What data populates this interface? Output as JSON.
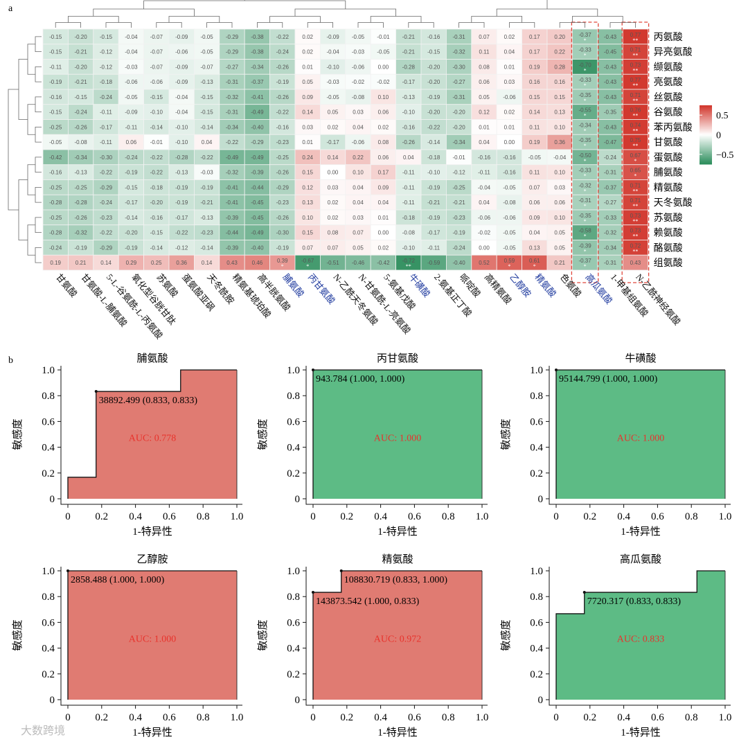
{
  "panel_labels": {
    "a": "a",
    "b": "b"
  },
  "chart_data": [
    {
      "type": "heatmap",
      "title": "",
      "columns": [
        "甘氨酸",
        "甘氨酸-L-脯氨酸",
        "5-L-谷氨酰-L-丙氨酸",
        "氧化型谷胱甘肽",
        "苏氨酸",
        "蛋氨酸亚砜",
        "天冬酰胺",
        "精氨基琥珀酸",
        "高半胱氨酸",
        "脯氨酸",
        "丙甘氨酸",
        "N-乙酰天冬氨酸",
        "N-甘氨酰-L-亮氨酸",
        "5-氨基戊酸",
        "牛磺酸",
        "2-氨基正丁酸",
        "哌啶酸",
        "高精氨酸",
        "乙醇胺",
        "精氨酸",
        "色氨酸",
        "高瓜氨酸",
        "1-甲基组氨酸",
        "N-乙酰神经氨酸"
      ],
      "highlighted_columns": [
        "脯氨酸",
        "丙甘氨酸",
        "牛磺酸",
        "乙醇胺",
        "精氨酸",
        "高瓜氨酸"
      ],
      "boxed_columns": [
        "高瓜氨酸",
        "N-乙酰神经氨酸"
      ],
      "rows": [
        "丙氨酸",
        "异亮氨酸",
        "缬氨酸",
        "亮氨酸",
        "丝氨酸",
        "谷氨酸",
        "苯丙氨酸",
        "甘氨酸",
        "蛋氨酸",
        "脯氨酸",
        "精氨酸",
        "天冬氨酸",
        "苏氨酸",
        "赖氨酸",
        "酪氨酸",
        "组氨酸"
      ],
      "values": [
        [
          -0.15,
          -0.2,
          -0.15,
          -0.04,
          -0.07,
          -0.09,
          -0.05,
          -0.29,
          -0.38,
          -0.22,
          0.02,
          -0.09,
          -0.05,
          -0.01,
          -0.21,
          -0.16,
          -0.31,
          0.07,
          0.02,
          0.17,
          0.2,
          -0.37,
          -0.43,
          0.77
        ],
        [
          -0.15,
          -0.21,
          -0.12,
          -0.04,
          -0.07,
          -0.06,
          -0.05,
          -0.29,
          -0.38,
          -0.24,
          0.02,
          -0.04,
          -0.03,
          -0.05,
          -0.21,
          -0.15,
          -0.32,
          0.11,
          0.04,
          0.17,
          0.22,
          -0.33,
          -0.45,
          0.71
        ],
        [
          -0.11,
          -0.2,
          -0.12,
          -0.03,
          -0.07,
          -0.09,
          -0.07,
          -0.27,
          -0.34,
          -0.26,
          0.01,
          -0.1,
          -0.06,
          0.0,
          -0.28,
          -0.2,
          -0.3,
          0.08,
          0.01,
          0.19,
          0.28,
          -0.7,
          -0.43,
          0.73
        ],
        [
          -0.19,
          -0.21,
          -0.18,
          -0.06,
          -0.06,
          -0.09,
          -0.13,
          -0.31,
          -0.37,
          -0.19,
          0.05,
          -0.03,
          -0.02,
          -0.02,
          -0.17,
          -0.2,
          -0.27,
          0.06,
          0.03,
          0.16,
          0.16,
          -0.33,
          -0.43,
          0.77
        ],
        [
          -0.16,
          -0.15,
          -0.24,
          -0.05,
          -0.15,
          -0.04,
          -0.15,
          -0.32,
          -0.41,
          -0.26,
          0.09,
          -0.05,
          -0.08,
          0.1,
          -0.13,
          -0.19,
          -0.31,
          0.05,
          -0.06,
          0.15,
          0.15,
          -0.35,
          -0.43,
          0.71
        ],
        [
          -0.15,
          -0.24,
          -0.11,
          -0.09,
          -0.1,
          -0.04,
          -0.15,
          -0.31,
          -0.49,
          -0.22,
          0.14,
          0.05,
          0.03,
          0.06,
          -0.1,
          -0.2,
          -0.2,
          0.12,
          0.02,
          0.14,
          0.13,
          -0.55,
          -0.35,
          0.76
        ],
        [
          -0.25,
          -0.26,
          -0.17,
          -0.11,
          -0.14,
          -0.1,
          -0.14,
          -0.34,
          -0.4,
          -0.16,
          0.03,
          0.02,
          0.04,
          0.02,
          -0.16,
          -0.22,
          -0.2,
          0.01,
          0.01,
          0.11,
          0.1,
          -0.34,
          -0.43,
          0.74
        ],
        [
          -0.05,
          -0.08,
          -0.11,
          0.06,
          -0.01,
          -0.1,
          0.04,
          -0.22,
          -0.29,
          -0.23,
          0.01,
          -0.17,
          -0.06,
          0.08,
          -0.26,
          -0.14,
          -0.34,
          0.04,
          0.0,
          0.19,
          0.36,
          -0.35,
          -0.47,
          0.75
        ],
        [
          -0.42,
          -0.34,
          -0.3,
          -0.24,
          -0.22,
          -0.28,
          -0.22,
          -0.49,
          -0.49,
          -0.25,
          0.24,
          0.14,
          0.22,
          0.06,
          0.04,
          -0.18,
          -0.01,
          -0.16,
          -0.16,
          -0.05,
          -0.04,
          -0.5,
          -0.24,
          0.67
        ],
        [
          -0.16,
          -0.13,
          -0.22,
          -0.19,
          -0.22,
          -0.13,
          -0.03,
          -0.32,
          -0.39,
          -0.26,
          0.15,
          0.0,
          0.1,
          0.17,
          -0.11,
          -0.1,
          -0.12,
          -0.11,
          -0.16,
          0.11,
          0.1,
          -0.33,
          -0.31,
          0.65
        ],
        [
          -0.25,
          -0.25,
          -0.29,
          -0.15,
          -0.18,
          -0.19,
          -0.19,
          -0.41,
          -0.44,
          -0.29,
          0.12,
          0.03,
          0.04,
          0.09,
          -0.11,
          -0.19,
          -0.25,
          -0.04,
          -0.05,
          0.07,
          0.03,
          -0.32,
          -0.37,
          0.71
        ],
        [
          -0.28,
          -0.28,
          -0.24,
          -0.17,
          -0.2,
          -0.19,
          -0.21,
          -0.41,
          -0.45,
          -0.23,
          0.13,
          0.02,
          0.04,
          0.04,
          -0.11,
          -0.21,
          -0.21,
          0.04,
          -0.08,
          0.06,
          0.06,
          -0.31,
          -0.27,
          0.71
        ],
        [
          -0.25,
          -0.26,
          -0.23,
          -0.14,
          -0.16,
          -0.17,
          -0.13,
          -0.39,
          -0.45,
          -0.26,
          0.1,
          0.02,
          0.03,
          0.01,
          -0.18,
          -0.19,
          -0.23,
          -0.06,
          -0.06,
          0.09,
          0.1,
          -0.35,
          -0.33,
          0.73
        ],
        [
          -0.28,
          -0.32,
          -0.22,
          -0.2,
          -0.15,
          -0.22,
          -0.23,
          -0.44,
          -0.49,
          -0.3,
          0.15,
          0.08,
          0.07,
          0.0,
          -0.08,
          -0.17,
          -0.19,
          -0.02,
          -0.05,
          0.04,
          0.05,
          -0.58,
          -0.32,
          0.73
        ],
        [
          -0.24,
          -0.19,
          -0.29,
          -0.19,
          -0.14,
          -0.12,
          -0.14,
          -0.39,
          -0.4,
          -0.19,
          0.07,
          0.07,
          0.05,
          0.02,
          -0.1,
          -0.11,
          -0.24,
          0.0,
          -0.05,
          0.13,
          0.05,
          -0.39,
          -0.34,
          0.72
        ],
        [
          0.19,
          0.21,
          0.14,
          0.29,
          0.25,
          0.36,
          0.14,
          0.43,
          0.46,
          0.39,
          -0.67,
          -0.51,
          -0.46,
          -0.42,
          -0.72,
          -0.59,
          -0.4,
          0.52,
          0.59,
          0.61,
          0.21,
          -0.37,
          -0.31,
          0.43
        ]
      ],
      "significance": [
        [
          "",
          "",
          "",
          "",
          "",
          "",
          "",
          "",
          "",
          "",
          "",
          "",
          "",
          "",
          "",
          "",
          "",
          "",
          "",
          "",
          "",
          "*",
          "",
          "**"
        ],
        [
          "",
          "",
          "",
          "",
          "",
          "",
          "",
          "",
          "",
          "",
          "",
          "",
          "",
          "",
          "",
          "",
          "",
          "",
          "",
          "",
          "",
          "*",
          "",
          "**"
        ],
        [
          "",
          "",
          "",
          "",
          "",
          "",
          "",
          "",
          "",
          "",
          "",
          "",
          "",
          "",
          "",
          "",
          "",
          "",
          "",
          "",
          "",
          "*",
          "",
          "**"
        ],
        [
          "",
          "",
          "",
          "",
          "",
          "",
          "",
          "",
          "",
          "",
          "",
          "",
          "",
          "",
          "",
          "",
          "",
          "",
          "",
          "",
          "",
          "*",
          "",
          "**"
        ],
        [
          "",
          "",
          "",
          "",
          "",
          "",
          "",
          "",
          "",
          "",
          "",
          "",
          "",
          "",
          "",
          "",
          "",
          "",
          "",
          "",
          "",
          "*",
          "",
          "**"
        ],
        [
          "",
          "",
          "",
          "",
          "",
          "",
          "",
          "",
          "",
          "",
          "",
          "",
          "",
          "",
          "",
          "",
          "",
          "",
          "",
          "",
          "",
          "*",
          "",
          "**"
        ],
        [
          "",
          "",
          "",
          "",
          "",
          "",
          "",
          "",
          "",
          "",
          "",
          "",
          "",
          "",
          "",
          "",
          "",
          "",
          "",
          "",
          "",
          "*",
          "",
          "**"
        ],
        [
          "",
          "",
          "",
          "",
          "",
          "",
          "",
          "",
          "",
          "",
          "",
          "",
          "",
          "",
          "",
          "",
          "",
          "",
          "",
          "",
          "",
          "*",
          "",
          "**"
        ],
        [
          "",
          "",
          "",
          "",
          "",
          "",
          "",
          "",
          "",
          "",
          "",
          "",
          "",
          "",
          "",
          "",
          "",
          "",
          "",
          "",
          "",
          "*",
          "",
          "*"
        ],
        [
          "",
          "",
          "",
          "",
          "",
          "",
          "",
          "",
          "",
          "",
          "",
          "",
          "",
          "",
          "",
          "",
          "",
          "",
          "",
          "",
          "",
          "*",
          "",
          "*"
        ],
        [
          "",
          "",
          "",
          "",
          "",
          "",
          "",
          "",
          "",
          "",
          "",
          "",
          "",
          "",
          "",
          "",
          "",
          "",
          "",
          "",
          "",
          "*",
          "",
          "**"
        ],
        [
          "",
          "",
          "",
          "",
          "",
          "",
          "",
          "",
          "",
          "",
          "",
          "",
          "",
          "",
          "",
          "",
          "",
          "",
          "",
          "",
          "",
          "*",
          "",
          "**"
        ],
        [
          "",
          "",
          "",
          "",
          "",
          "",
          "",
          "",
          "",
          "",
          "",
          "",
          "",
          "",
          "",
          "",
          "",
          "",
          "",
          "",
          "",
          "*",
          "",
          "**"
        ],
        [
          "",
          "",
          "",
          "",
          "",
          "",
          "",
          "",
          "",
          "",
          "",
          "",
          "",
          "",
          "",
          "",
          "",
          "",
          "",
          "",
          "",
          "*",
          "",
          "**"
        ],
        [
          "",
          "",
          "",
          "",
          "",
          "",
          "",
          "",
          "",
          "",
          "",
          "",
          "",
          "",
          "",
          "",
          "",
          "",
          "",
          "",
          "",
          "*",
          "",
          "**"
        ],
        [
          "",
          "",
          "",
          "",
          "",
          "",
          "",
          "",
          "",
          "*",
          "*",
          "",
          "",
          "",
          "**",
          "",
          "",
          "",
          "*",
          "*",
          "",
          "*",
          "",
          ""
        ]
      ],
      "legend": {
        "ticks": [
          "0.5",
          "0",
          "−0.5"
        ],
        "tick_values": [
          0.5,
          0,
          -0.5
        ],
        "range": [
          -0.75,
          0.75
        ]
      },
      "colors": {
        "negative": "#2f8f5e",
        "neutral": "#ffffff",
        "positive": "#d2392f",
        "highlight_label": "#1f3a9e",
        "box": "#e0463a"
      }
    },
    {
      "type": "area",
      "subtype": "roc",
      "panels": [
        {
          "title": "脯氨酸",
          "color": "#e07b72",
          "curve": [
            [
              0,
              0
            ],
            [
              0,
              0.167
            ],
            [
              0.167,
              0.167
            ],
            [
              0.167,
              0.833
            ],
            [
              0.667,
              0.833
            ],
            [
              0.667,
              1
            ],
            [
              1,
              1
            ],
            [
              1,
              0
            ]
          ],
          "points": [
            {
              "x": 0.167,
              "y": 0.833,
              "label": "38892.499 (0.833, 0.833)"
            }
          ],
          "auc": "AUC: 0.778"
        },
        {
          "title": "丙甘氨酸",
          "color": "#5dbb85",
          "curve": [
            [
              0,
              0
            ],
            [
              0,
              1
            ],
            [
              1,
              1
            ],
            [
              1,
              0
            ]
          ],
          "points": [
            {
              "x": 0,
              "y": 1,
              "label": "943.784 (1.000, 1.000)"
            }
          ],
          "auc": "AUC: 1.000"
        },
        {
          "title": "牛磺酸",
          "color": "#5dbb85",
          "curve": [
            [
              0,
              0
            ],
            [
              0,
              1
            ],
            [
              1,
              1
            ],
            [
              1,
              0
            ]
          ],
          "points": [
            {
              "x": 0,
              "y": 1,
              "label": "95144.799 (1.000, 1.000)"
            }
          ],
          "auc": "AUC: 1.000"
        },
        {
          "title": "乙醇胺",
          "color": "#e07b72",
          "curve": [
            [
              0,
              0
            ],
            [
              0,
              1
            ],
            [
              1,
              1
            ],
            [
              1,
              0
            ]
          ],
          "points": [
            {
              "x": 0,
              "y": 1,
              "label": "2858.488 (1.000, 1.000)"
            }
          ],
          "auc": "AUC: 1.000"
        },
        {
          "title": "精氨酸",
          "color": "#e07b72",
          "curve": [
            [
              0,
              0
            ],
            [
              0,
              0.833
            ],
            [
              0.167,
              0.833
            ],
            [
              0.167,
              1
            ],
            [
              1,
              1
            ],
            [
              1,
              0
            ]
          ],
          "points": [
            {
              "x": 0.167,
              "y": 1,
              "label": "108830.719 (0.833, 1.000)"
            },
            {
              "x": 0,
              "y": 0.833,
              "label": "143873.542 (1.000, 0.833)"
            }
          ],
          "auc": "AUC: 0.972"
        },
        {
          "title": "高瓜氨酸",
          "color": "#5dbb85",
          "curve": [
            [
              0,
              0
            ],
            [
              0,
              0.667
            ],
            [
              0.167,
              0.667
            ],
            [
              0.167,
              0.833
            ],
            [
              0.833,
              0.833
            ],
            [
              0.833,
              1
            ],
            [
              1,
              1
            ],
            [
              1,
              0
            ]
          ],
          "points": [
            {
              "x": 0.167,
              "y": 0.833,
              "label": "7720.317 (0.833, 0.833)"
            }
          ],
          "auc": "AUC: 0.833"
        }
      ],
      "xlabel": "1-特异性",
      "ylabel": "敏感度",
      "xticks": [
        "0",
        "0.2",
        "0.4",
        "0.6",
        "0.8",
        "1.0"
      ],
      "yticks": [
        "0",
        "0.2",
        "0.4",
        "0.6",
        "0.8",
        "1.0"
      ],
      "xlim": [
        0,
        1
      ],
      "ylim": [
        0,
        1
      ],
      "auc_color": "#e8322b"
    }
  ],
  "watermark": "大数跨境"
}
